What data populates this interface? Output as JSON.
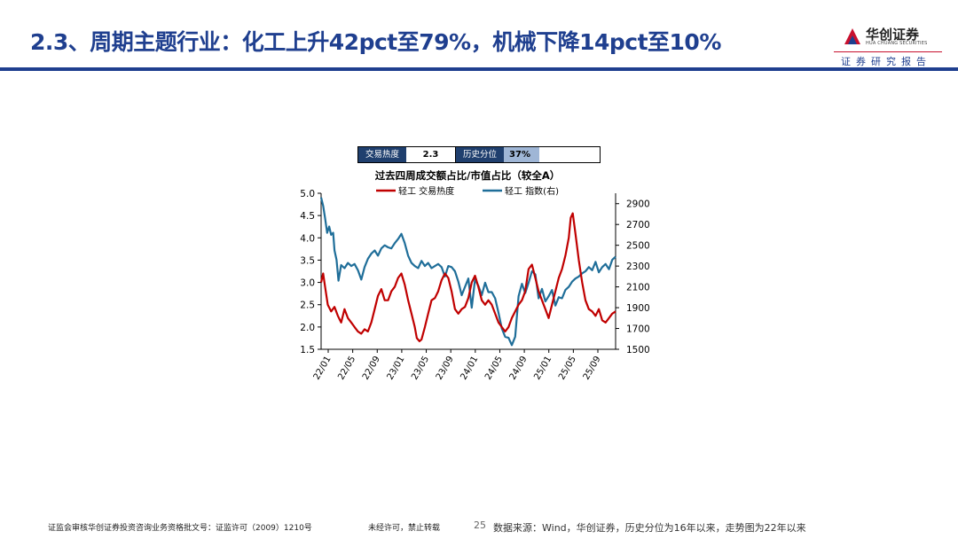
{
  "header": {
    "title": "2.3、周期主题行业：化工上升42pct至79%，机械下降14pct至10%",
    "logo_name": "华创证券",
    "logo_sub": "HUA CHUANG SECURITIES",
    "report_label": "证券研究报告"
  },
  "heat_table": {
    "heat_label": "交易热度",
    "heat_value": "2.3",
    "hist_label": "历史分位",
    "hist_value": "37%",
    "hist_fraction": 0.37
  },
  "chart_data": {
    "type": "line",
    "title": "过去四周成交额占比/市值占比（较全A）",
    "x_tick_labels": [
      "22/01",
      "22/05",
      "22/09",
      "23/01",
      "23/05",
      "23/09",
      "24/01",
      "24/05",
      "24/09",
      "25/01",
      "25/05",
      "25/09"
    ],
    "left_axis": {
      "ylim": [
        1.5,
        5.0
      ],
      "ticks": [
        "1.5",
        "2.0",
        "2.5",
        "3.0",
        "3.5",
        "4.0",
        "4.5",
        "5.0"
      ]
    },
    "right_axis": {
      "ylim": [
        1500,
        3000
      ],
      "ticks": [
        "1500",
        "1700",
        "1900",
        "2100",
        "2300",
        "2500",
        "2700",
        "2900"
      ]
    },
    "legend_position": "top-center",
    "grid": false,
    "series": [
      {
        "name": "轻工 交易热度",
        "axis": "left",
        "color": "#c00000",
        "points": [
          [
            0,
            3.0
          ],
          [
            0.3,
            3.2
          ],
          [
            0.6,
            2.9
          ],
          [
            1,
            2.5
          ],
          [
            1.5,
            2.35
          ],
          [
            2,
            2.45
          ],
          [
            2.5,
            2.25
          ],
          [
            3,
            2.1
          ],
          [
            3.5,
            2.4
          ],
          [
            4,
            2.2
          ],
          [
            4.5,
            2.1
          ],
          [
            5,
            2.0
          ],
          [
            5.5,
            1.9
          ],
          [
            6,
            1.85
          ],
          [
            6.5,
            1.95
          ],
          [
            7,
            1.9
          ],
          [
            7.5,
            2.1
          ],
          [
            8,
            2.4
          ],
          [
            8.5,
            2.7
          ],
          [
            9,
            2.85
          ],
          [
            9.5,
            2.6
          ],
          [
            10,
            2.6
          ],
          [
            10.5,
            2.8
          ],
          [
            11,
            2.9
          ],
          [
            11.5,
            3.1
          ],
          [
            12,
            3.2
          ],
          [
            12.5,
            2.95
          ],
          [
            13,
            2.6
          ],
          [
            13.5,
            2.3
          ],
          [
            14,
            2.0
          ],
          [
            14.3,
            1.75
          ],
          [
            14.7,
            1.68
          ],
          [
            15,
            1.72
          ],
          [
            15.5,
            2.0
          ],
          [
            16,
            2.3
          ],
          [
            16.5,
            2.6
          ],
          [
            17,
            2.65
          ],
          [
            17.5,
            2.8
          ],
          [
            18,
            3.05
          ],
          [
            18.5,
            3.2
          ],
          [
            19,
            3.1
          ],
          [
            19.5,
            2.8
          ],
          [
            20,
            2.4
          ],
          [
            20.5,
            2.3
          ],
          [
            21,
            2.4
          ],
          [
            21.5,
            2.45
          ],
          [
            22,
            2.65
          ],
          [
            22.5,
            3.0
          ],
          [
            23,
            3.15
          ],
          [
            23.5,
            2.9
          ],
          [
            24,
            2.6
          ],
          [
            24.5,
            2.5
          ],
          [
            25,
            2.6
          ],
          [
            25.5,
            2.5
          ],
          [
            26,
            2.3
          ],
          [
            26.5,
            2.1
          ],
          [
            27,
            2.0
          ],
          [
            27.5,
            1.9
          ],
          [
            28,
            2.0
          ],
          [
            28.5,
            2.2
          ],
          [
            29,
            2.35
          ],
          [
            29.5,
            2.5
          ],
          [
            30,
            2.6
          ],
          [
            30.5,
            2.8
          ],
          [
            31,
            3.3
          ],
          [
            31.5,
            3.4
          ],
          [
            32,
            3.1
          ],
          [
            32.5,
            2.8
          ],
          [
            33,
            2.6
          ],
          [
            33.5,
            2.4
          ],
          [
            34,
            2.2
          ],
          [
            34.5,
            2.5
          ],
          [
            35,
            2.8
          ],
          [
            35.5,
            3.1
          ],
          [
            36,
            3.3
          ],
          [
            36.5,
            3.6
          ],
          [
            37,
            4.0
          ],
          [
            37.3,
            4.45
          ],
          [
            37.6,
            4.55
          ],
          [
            38,
            4.1
          ],
          [
            38.5,
            3.5
          ],
          [
            39,
            3.0
          ],
          [
            39.5,
            2.6
          ],
          [
            40,
            2.4
          ],
          [
            40.5,
            2.35
          ],
          [
            41,
            2.25
          ],
          [
            41.5,
            2.4
          ],
          [
            42,
            2.15
          ],
          [
            42.5,
            2.1
          ],
          [
            43,
            2.2
          ],
          [
            43.5,
            2.3
          ],
          [
            44,
            2.35
          ]
        ]
      },
      {
        "name": "轻工 指数(右)",
        "axis": "right",
        "color": "#1f6e99",
        "points": [
          [
            0,
            2960
          ],
          [
            0.3,
            2880
          ],
          [
            0.6,
            2760
          ],
          [
            0.9,
            2620
          ],
          [
            1.2,
            2680
          ],
          [
            1.5,
            2600
          ],
          [
            1.8,
            2620
          ],
          [
            2,
            2450
          ],
          [
            2.3,
            2360
          ],
          [
            2.6,
            2160
          ],
          [
            3,
            2310
          ],
          [
            3.5,
            2280
          ],
          [
            4,
            2330
          ],
          [
            4.5,
            2300
          ],
          [
            5,
            2320
          ],
          [
            5.5,
            2260
          ],
          [
            6,
            2170
          ],
          [
            6.5,
            2290
          ],
          [
            7,
            2370
          ],
          [
            7.5,
            2420
          ],
          [
            8,
            2450
          ],
          [
            8.5,
            2400
          ],
          [
            9,
            2470
          ],
          [
            9.5,
            2500
          ],
          [
            10,
            2480
          ],
          [
            10.5,
            2470
          ],
          [
            11,
            2520
          ],
          [
            11.5,
            2560
          ],
          [
            12,
            2610
          ],
          [
            12.5,
            2520
          ],
          [
            13,
            2400
          ],
          [
            13.5,
            2330
          ],
          [
            14,
            2300
          ],
          [
            14.5,
            2280
          ],
          [
            15,
            2350
          ],
          [
            15.5,
            2300
          ],
          [
            16,
            2330
          ],
          [
            16.5,
            2280
          ],
          [
            17,
            2300
          ],
          [
            17.5,
            2320
          ],
          [
            18,
            2290
          ],
          [
            18.5,
            2200
          ],
          [
            19,
            2300
          ],
          [
            19.5,
            2290
          ],
          [
            20,
            2250
          ],
          [
            20.5,
            2150
          ],
          [
            21,
            2020
          ],
          [
            21.5,
            2100
          ],
          [
            22,
            2180
          ],
          [
            22.5,
            1900
          ],
          [
            23,
            2170
          ],
          [
            23.5,
            2110
          ],
          [
            24,
            2020
          ],
          [
            24.5,
            2140
          ],
          [
            25,
            2050
          ],
          [
            25.5,
            2050
          ],
          [
            26,
            1990
          ],
          [
            26.5,
            1850
          ],
          [
            27,
            1700
          ],
          [
            27.5,
            1620
          ],
          [
            28,
            1610
          ],
          [
            28.5,
            1540
          ],
          [
            29,
            1620
          ],
          [
            29.5,
            2010
          ],
          [
            30,
            2130
          ],
          [
            30.5,
            2040
          ],
          [
            31,
            2140
          ],
          [
            31.5,
            2250
          ],
          [
            32,
            2220
          ],
          [
            32.5,
            1990
          ],
          [
            33,
            2080
          ],
          [
            33.5,
            1960
          ],
          [
            34,
            2010
          ],
          [
            34.5,
            2070
          ],
          [
            35,
            1920
          ],
          [
            35.5,
            2000
          ],
          [
            36,
            1990
          ],
          [
            36.5,
            2070
          ],
          [
            37,
            2100
          ],
          [
            37.5,
            2150
          ],
          [
            38,
            2180
          ],
          [
            38.5,
            2200
          ],
          [
            39,
            2230
          ],
          [
            39.5,
            2250
          ],
          [
            40,
            2290
          ],
          [
            40.5,
            2260
          ],
          [
            41,
            2340
          ],
          [
            41.5,
            2240
          ],
          [
            42,
            2290
          ],
          [
            42.5,
            2320
          ],
          [
            43,
            2270
          ],
          [
            43.5,
            2360
          ],
          [
            44,
            2390
          ]
        ]
      }
    ]
  },
  "footer": {
    "license": "证监会审核华创证券投资咨询业务资格批文号：证监许可（2009）1210号",
    "notice": "未经许可，禁止转载",
    "page": "25",
    "source": "数据来源：Wind，华创证券，历史分位为16年以来，走势图为22年以来"
  }
}
